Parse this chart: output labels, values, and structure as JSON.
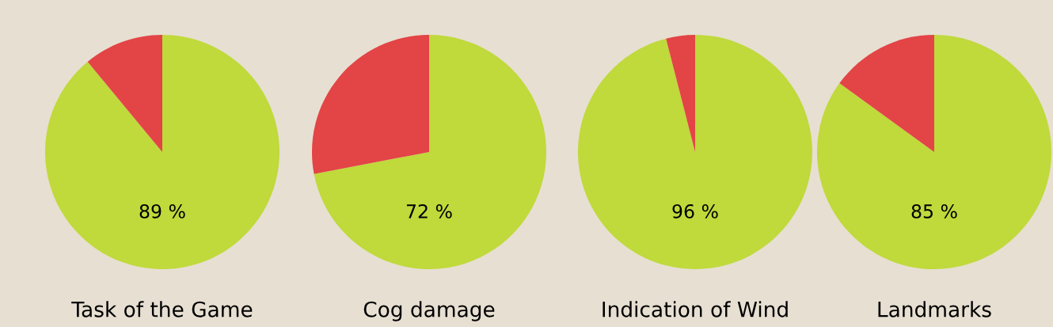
{
  "chart_data": [
    {
      "type": "pie",
      "title": "Task of the Game",
      "categories": [
        null,
        null
      ],
      "values": [
        89,
        11
      ],
      "colors": [
        "#c0d93b",
        "#e34446"
      ],
      "value_labels": [
        "89 %",
        null
      ]
    },
    {
      "type": "pie",
      "title": "Cog damage",
      "categories": [
        null,
        null
      ],
      "values": [
        72,
        28
      ],
      "colors": [
        "#c0d93b",
        "#e34446"
      ],
      "value_labels": [
        "72 %",
        null
      ]
    },
    {
      "type": "pie",
      "title": "Indication of Wind",
      "categories": [
        null,
        null
      ],
      "values": [
        96,
        4
      ],
      "colors": [
        "#c0d93b",
        "#e34446"
      ],
      "value_labels": [
        "96 %",
        null
      ]
    },
    {
      "type": "pie",
      "title": "Landmarks",
      "categories": [
        null,
        null
      ],
      "values": [
        85,
        15
      ],
      "colors": [
        "#c0d93b",
        "#e34446"
      ],
      "value_labels": [
        "85 %",
        null
      ]
    }
  ]
}
